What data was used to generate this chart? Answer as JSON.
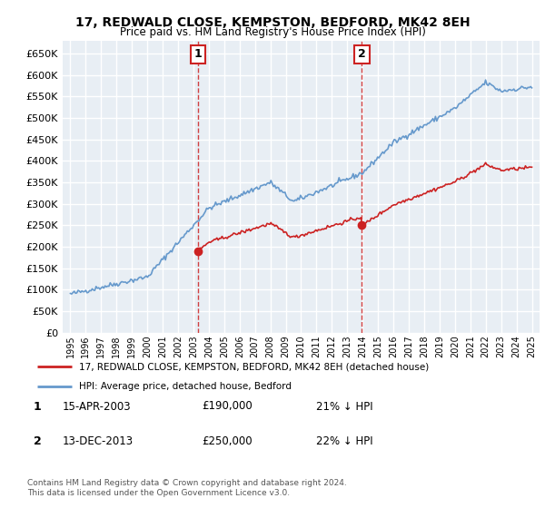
{
  "title": "17, REDWALD CLOSE, KEMPSTON, BEDFORD, MK42 8EH",
  "subtitle": "Price paid vs. HM Land Registry's House Price Index (HPI)",
  "ylim": [
    0,
    680000
  ],
  "yticks": [
    0,
    50000,
    100000,
    150000,
    200000,
    250000,
    300000,
    350000,
    400000,
    450000,
    500000,
    550000,
    600000,
    650000
  ],
  "sale1_date": 2003.29,
  "sale1_price": 190000,
  "sale1_label": "1",
  "sale2_date": 2013.95,
  "sale2_price": 250000,
  "sale2_label": "2",
  "bg_color": "#e8eef4",
  "grid_color": "#ffffff",
  "hpi_color": "#6699cc",
  "price_color": "#cc2222",
  "vline_color": "#cc2222",
  "legend_entry1": "17, REDWALD CLOSE, KEMPSTON, BEDFORD, MK42 8EH (detached house)",
  "legend_entry2": "HPI: Average price, detached house, Bedford",
  "footnote": "Contains HM Land Registry data © Crown copyright and database right 2024.\nThis data is licensed under the Open Government Licence v3.0.",
  "table_rows": [
    [
      "1",
      "15-APR-2003",
      "£190,000",
      "21% ↓ HPI"
    ],
    [
      "2",
      "13-DEC-2013",
      "£250,000",
      "22% ↓ HPI"
    ]
  ]
}
